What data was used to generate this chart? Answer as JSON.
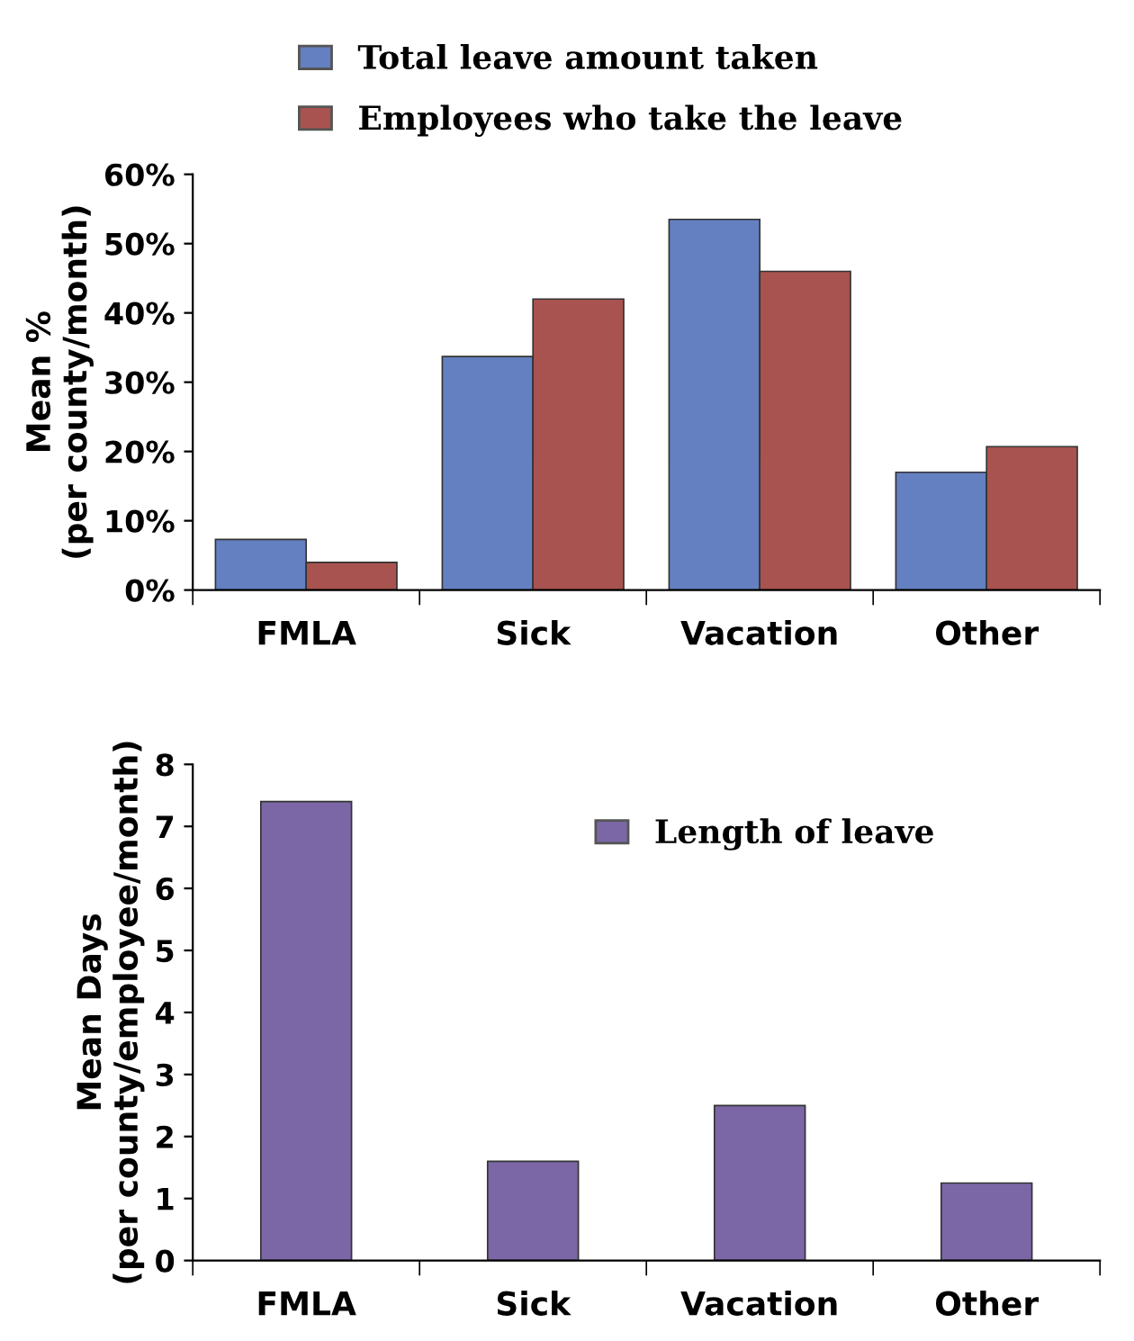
{
  "chart_data": [
    {
      "type": "bar",
      "ylabel": "Mean %\n(per county/month)",
      "categories": [
        "FMLA",
        "Sick",
        "Vacation",
        "Other"
      ],
      "series": [
        {
          "name": "Total leave amount taken",
          "color": "#6580c0",
          "values": [
            7.3,
            33.7,
            53.5,
            17
          ]
        },
        {
          "name": "Employees who take the leave",
          "color": "#a8534f",
          "values": [
            4,
            42,
            46,
            20.7
          ]
        }
      ],
      "ylim": [
        0,
        60
      ],
      "yticks": [
        {
          "value": 0,
          "label": "0%"
        },
        {
          "value": 10,
          "label": "10%"
        },
        {
          "value": 20,
          "label": "20%"
        },
        {
          "value": 30,
          "label": "30%"
        },
        {
          "value": 40,
          "label": "40%"
        },
        {
          "value": 50,
          "label": "50%"
        },
        {
          "value": 60,
          "label": "60%"
        }
      ],
      "legend": "top",
      "grid": false
    },
    {
      "type": "bar",
      "ylabel": "Mean Days\n(per county/employee/month)",
      "categories": [
        "FMLA",
        "Sick",
        "Vacation",
        "Other"
      ],
      "series": [
        {
          "name": "Length of leave",
          "color": "#7b67a6",
          "values": [
            7.4,
            1.6,
            2.5,
            1.25
          ]
        }
      ],
      "ylim": [
        0,
        8
      ],
      "yticks": [
        0,
        1,
        2,
        3,
        4,
        5,
        6,
        7,
        8
      ],
      "legend": "top right",
      "grid": false
    }
  ]
}
